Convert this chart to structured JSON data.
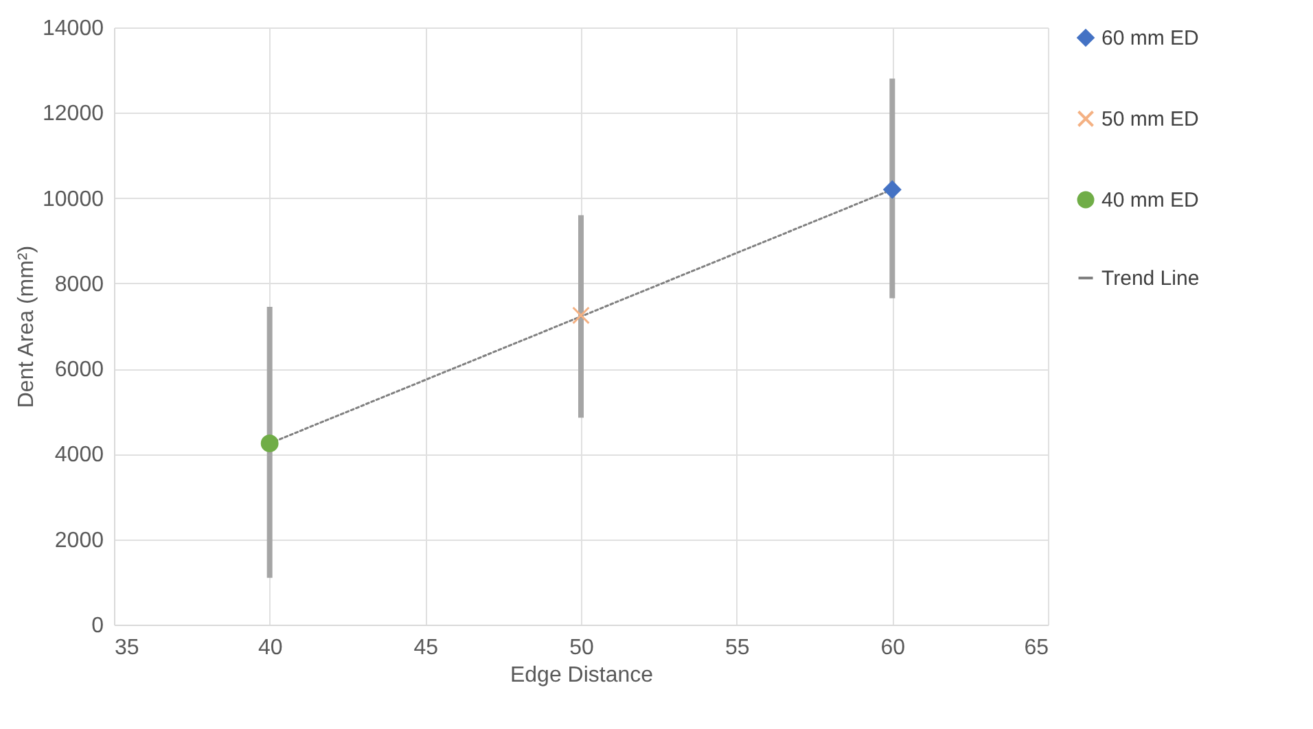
{
  "chart_data": {
    "type": "scatter",
    "xlabel": "Edge Distance",
    "ylabel": "Dent Area (mm²)",
    "xlim": [
      35,
      65
    ],
    "xticks": [
      35,
      40,
      45,
      50,
      55,
      60,
      65
    ],
    "ylim": [
      0,
      14000
    ],
    "yticks": [
      0,
      2000,
      4000,
      6000,
      8000,
      10000,
      12000,
      14000
    ],
    "grid": true,
    "legend": "right",
    "series": [
      {
        "name": "60 mm ED",
        "color": "#4472c4",
        "marker": "diamond",
        "x": [
          60
        ],
        "values": [
          10200
        ],
        "errors": [
          [
            7650,
            12800
          ]
        ]
      },
      {
        "name": "50 mm ED",
        "color": "#f4b183",
        "marker": "cross",
        "x": [
          50
        ],
        "values": [
          7250
        ],
        "errors": [
          [
            4850,
            9600
          ]
        ]
      },
      {
        "name": "40 mm ED",
        "color": "#70ad47",
        "marker": "circle",
        "x": [
          40
        ],
        "values": [
          4250
        ],
        "errors": [
          [
            1100,
            7450
          ]
        ]
      },
      {
        "name": "Trend Line",
        "type": "line",
        "color": "#808080",
        "line_style": "dotted",
        "x": [
          40,
          60
        ],
        "values": [
          4250,
          10200
        ]
      }
    ]
  }
}
